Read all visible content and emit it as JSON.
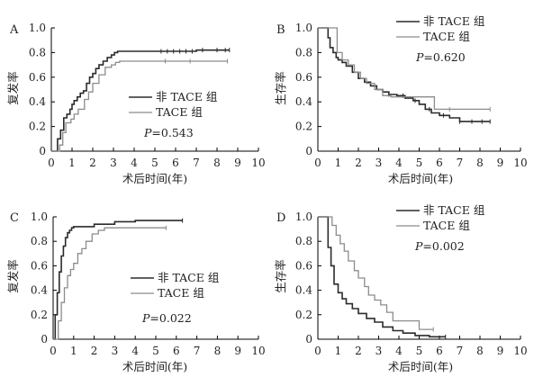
{
  "colors": {
    "non_tace": "#2b2b2b",
    "tace": "#8c8c8c",
    "axis": "#000000"
  },
  "chart_data": [
    {
      "type": "line",
      "panel": "A",
      "xlabel": "术后时间(年)",
      "ylabel": "复发率",
      "xlim": [
        0,
        10
      ],
      "ylim": [
        0,
        1.0
      ],
      "xticks": [
        "0",
        "1",
        "2",
        "3",
        "4",
        "5",
        "6",
        "7",
        "8",
        "9",
        "10"
      ],
      "yticks": [
        "0",
        "0.2",
        "0.4",
        "0.6",
        "0.8",
        "1.0"
      ],
      "legend_position": "center-right",
      "p_label": "P",
      "p_value": "=0.543",
      "series": [
        {
          "name": "非 TACE 组",
          "color": "#2b2b2b",
          "x": [
            0,
            0.3,
            0.45,
            0.6,
            0.75,
            0.9,
            1.0,
            1.1,
            1.25,
            1.4,
            1.55,
            1.7,
            1.85,
            2.0,
            2.15,
            2.3,
            2.5,
            2.7,
            2.9,
            3.05,
            3.2,
            5.0,
            5.5,
            6.0,
            6.5,
            7.0,
            7.5,
            8.0,
            8.6
          ],
          "y": [
            0,
            0.1,
            0.17,
            0.27,
            0.3,
            0.34,
            0.38,
            0.41,
            0.44,
            0.47,
            0.49,
            0.55,
            0.6,
            0.63,
            0.67,
            0.7,
            0.73,
            0.76,
            0.78,
            0.8,
            0.81,
            0.81,
            0.81,
            0.81,
            0.81,
            0.82,
            0.82,
            0.82,
            0.82
          ],
          "censor_x": [
            5.3,
            5.6,
            5.9,
            6.2,
            6.5,
            6.8,
            7.3,
            8.0,
            8.4,
            8.6
          ]
        },
        {
          "name": "TACE 组",
          "color": "#8c8c8c",
          "x": [
            0,
            0.4,
            0.55,
            0.7,
            0.95,
            1.1,
            1.3,
            1.6,
            1.8,
            2.0,
            2.3,
            2.6,
            2.9,
            3.1,
            3.3,
            8.5
          ],
          "y": [
            0,
            0.05,
            0.15,
            0.23,
            0.26,
            0.3,
            0.34,
            0.42,
            0.48,
            0.55,
            0.62,
            0.68,
            0.7,
            0.72,
            0.73,
            0.73
          ],
          "censor_x": [
            5.5,
            6.7,
            8.5
          ]
        }
      ]
    },
    {
      "type": "line",
      "panel": "B",
      "xlabel": "术后时间(年)",
      "ylabel": "生存率",
      "xlim": [
        0,
        10
      ],
      "ylim": [
        0,
        1.0
      ],
      "xticks": [
        "0",
        "1",
        "2",
        "3",
        "4",
        "5",
        "6",
        "7",
        "8",
        "9",
        "10"
      ],
      "yticks": [
        "0",
        "0.2",
        "0.4",
        "0.6",
        "0.8",
        "1.0"
      ],
      "legend_position": "top-right",
      "p_label": "P",
      "p_value": "=0.620",
      "series": [
        {
          "name": "非 TACE 组",
          "color": "#2b2b2b",
          "x": [
            0,
            0.5,
            0.6,
            0.75,
            0.9,
            1.0,
            1.2,
            1.4,
            1.7,
            2.0,
            2.3,
            2.6,
            2.9,
            3.2,
            3.5,
            3.9,
            4.3,
            4.7,
            5.0,
            5.3,
            5.6,
            6.0,
            6.5,
            7.0,
            8.5
          ],
          "y": [
            1.0,
            0.92,
            0.84,
            0.8,
            0.76,
            0.74,
            0.72,
            0.69,
            0.64,
            0.59,
            0.56,
            0.53,
            0.5,
            0.48,
            0.46,
            0.45,
            0.43,
            0.41,
            0.38,
            0.34,
            0.31,
            0.29,
            0.27,
            0.24,
            0.24
          ],
          "censor_x": [
            3.5,
            4.2,
            4.8,
            5.5,
            6.2,
            7.0,
            7.6,
            8.1,
            8.5
          ]
        },
        {
          "name": "TACE 组",
          "color": "#8c8c8c",
          "x": [
            0,
            0.8,
            0.95,
            1.2,
            1.5,
            1.8,
            2.1,
            2.4,
            2.8,
            3.2,
            3.6,
            5.5,
            5.75,
            8.5
          ],
          "y": [
            1.0,
            1.0,
            0.8,
            0.74,
            0.7,
            0.64,
            0.59,
            0.55,
            0.5,
            0.45,
            0.44,
            0.44,
            0.34,
            0.34
          ],
          "censor_x": [
            6.5,
            8.5
          ]
        }
      ]
    },
    {
      "type": "line",
      "panel": "C",
      "xlabel": "术后时间(年)",
      "ylabel": "复发率",
      "xlim": [
        0,
        10
      ],
      "ylim": [
        0,
        1.0
      ],
      "xticks": [
        "0",
        "1",
        "2",
        "3",
        "4",
        "5",
        "6",
        "7",
        "8",
        "9",
        "10"
      ],
      "yticks": [
        "0",
        "0.2",
        "0.4",
        "0.6",
        "0.8",
        "1.0"
      ],
      "legend_position": "center-right",
      "p_label": "P",
      "p_value": "=0.022",
      "series": [
        {
          "name": "非 TACE 组",
          "color": "#2b2b2b",
          "x": [
            0,
            0.1,
            0.2,
            0.3,
            0.4,
            0.5,
            0.6,
            0.7,
            0.8,
            0.9,
            1.0,
            1.5,
            2.0,
            3.0,
            4.0,
            6.3
          ],
          "y": [
            0,
            0.2,
            0.38,
            0.55,
            0.68,
            0.76,
            0.83,
            0.87,
            0.89,
            0.91,
            0.92,
            0.92,
            0.94,
            0.96,
            0.97,
            0.97
          ],
          "censor_x": [
            6.3
          ]
        },
        {
          "name": "TACE 组",
          "color": "#8c8c8c",
          "x": [
            0,
            0.25,
            0.4,
            0.55,
            0.7,
            0.85,
            1.0,
            1.2,
            1.4,
            1.6,
            1.9,
            2.2,
            2.5,
            5.5
          ],
          "y": [
            0,
            0.15,
            0.3,
            0.42,
            0.52,
            0.57,
            0.62,
            0.7,
            0.74,
            0.8,
            0.86,
            0.89,
            0.91,
            0.91
          ],
          "censor_x": [
            5.5
          ]
        }
      ]
    },
    {
      "type": "line",
      "panel": "D",
      "xlabel": "术后时间(年)",
      "ylabel": "生存率",
      "xlim": [
        0,
        10
      ],
      "ylim": [
        0,
        1.0
      ],
      "xticks": [
        "0",
        "1",
        "2",
        "3",
        "4",
        "5",
        "6",
        "7",
        "8",
        "9",
        "10"
      ],
      "yticks": [
        "0",
        "0.2",
        "0.4",
        "0.6",
        "0.8",
        "1.0"
      ],
      "legend_position": "top-right",
      "p_label": "P",
      "p_value": "=0.002",
      "series": [
        {
          "name": "非 TACE 组",
          "color": "#2b2b2b",
          "x": [
            0,
            0.35,
            0.5,
            0.65,
            0.8,
            1.0,
            1.2,
            1.4,
            1.7,
            2.0,
            2.4,
            2.8,
            3.2,
            3.7,
            4.2,
            4.8,
            5.5,
            6.3
          ],
          "y": [
            1.0,
            1.0,
            0.75,
            0.6,
            0.45,
            0.38,
            0.33,
            0.29,
            0.25,
            0.21,
            0.17,
            0.14,
            0.1,
            0.07,
            0.05,
            0.03,
            0.02,
            0.02
          ],
          "censor_x": [
            6.3
          ]
        },
        {
          "name": "TACE 组",
          "color": "#8c8c8c",
          "x": [
            0,
            0.5,
            0.7,
            0.9,
            1.1,
            1.3,
            1.5,
            1.8,
            2.0,
            2.3,
            2.5,
            2.8,
            3.1,
            3.4,
            3.7,
            4.5,
            5.0,
            5.7
          ],
          "y": [
            1.0,
            1.0,
            0.93,
            0.85,
            0.78,
            0.72,
            0.64,
            0.56,
            0.5,
            0.43,
            0.36,
            0.32,
            0.28,
            0.22,
            0.15,
            0.15,
            0.08,
            0.08
          ],
          "censor_x": [
            5.7
          ]
        }
      ]
    }
  ]
}
